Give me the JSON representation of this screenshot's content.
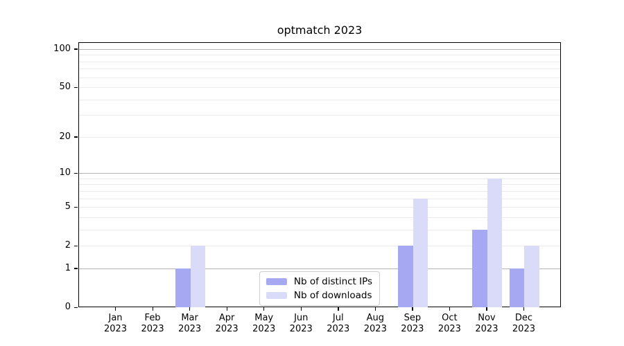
{
  "page": {
    "background": "#ffffff"
  },
  "chart_data": {
    "type": "bar",
    "title": "optmatch 2023",
    "categories": [
      "Jan",
      "Feb",
      "Mar",
      "Apr",
      "May",
      "Jun",
      "Jul",
      "Aug",
      "Sep",
      "Oct",
      "Nov",
      "Dec"
    ],
    "category_year": "2023",
    "series": [
      {
        "name": "Nb of distinct IPs",
        "color": "#a7a8f2",
        "values": [
          0,
          0,
          1,
          0,
          0,
          0,
          0,
          0,
          2,
          0,
          3,
          1
        ]
      },
      {
        "name": "Nb of downloads",
        "color": "#dadbf8",
        "values": [
          0,
          0,
          2,
          0,
          0,
          0,
          0,
          0,
          6,
          0,
          9,
          2
        ]
      }
    ],
    "xlabel": "",
    "ylabel": "",
    "yscale": "log1p",
    "ylim": [
      0,
      113
    ],
    "yticks": [
      0,
      1,
      2,
      5,
      10,
      20,
      50,
      100
    ],
    "grid_minor": [
      2,
      3,
      4,
      5,
      6,
      7,
      8,
      9,
      20,
      30,
      40,
      50,
      60,
      70,
      80,
      90
    ],
    "grid_major": [
      1,
      10,
      100
    ],
    "grid": "horizontal",
    "legend_position": "lower center",
    "colors": {
      "axis": "#000000",
      "grid_major": "#b4b4b4",
      "grid_minor": "#ebebeb",
      "legend_border": "#cccccc",
      "text": "#000000"
    }
  }
}
